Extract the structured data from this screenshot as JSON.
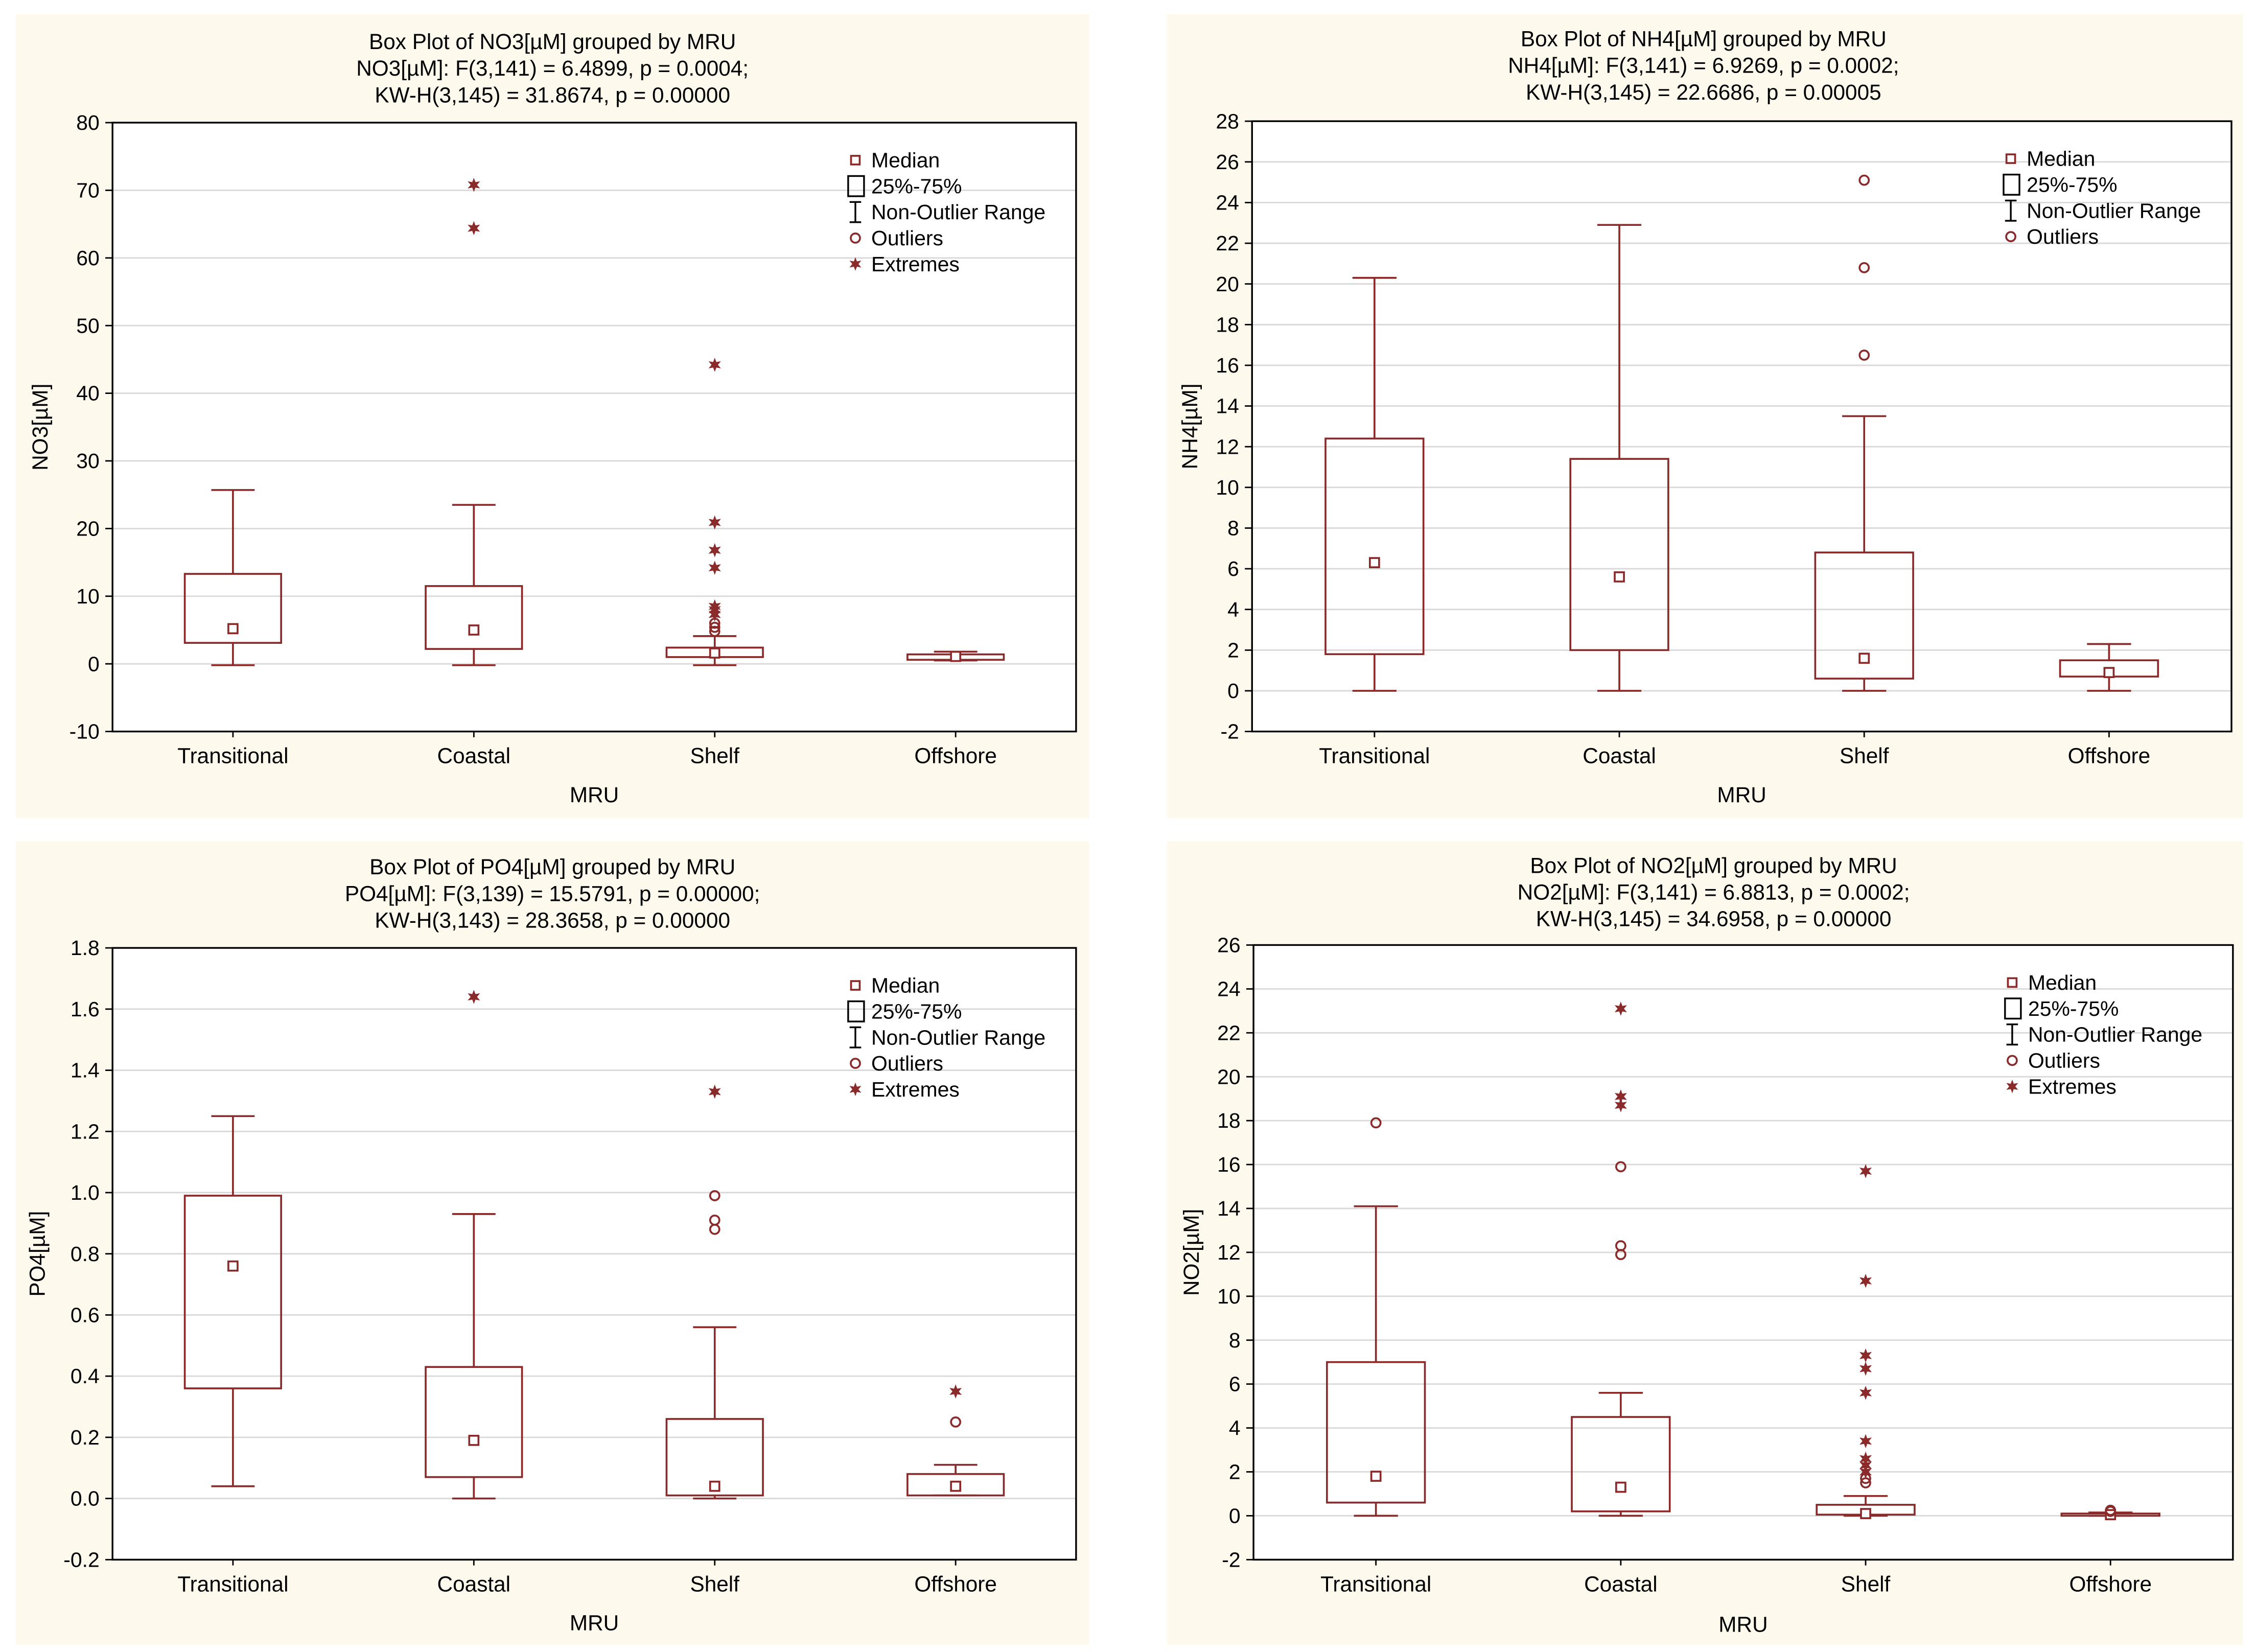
{
  "colors": {
    "panel_bg": "#fdf9ec",
    "plot_bg": "#ffffff",
    "mark": "#8b2a2a",
    "grid": "#d9d9d9",
    "axis": "#000000"
  },
  "legend_icons": [
    "median-square-icon",
    "box-25-75-icon",
    "whisker-icon",
    "outlier-circle-icon",
    "extreme-star-icon"
  ],
  "chart_data": [
    {
      "type": "box",
      "title": "Box Plot of NO3[µM] grouped by  MRU",
      "subtitle1": "NO3[µM]:   F(3,141) = 6.4899, p = 0.0004;",
      "subtitle2": "KW-H(3,145) = 31.8674, p = 0.00000",
      "xlabel": "MRU",
      "ylabel": "NO3[µM]",
      "ylim": [
        -10,
        80
      ],
      "yticks": [
        -10,
        0,
        10,
        20,
        30,
        40,
        50,
        60,
        70,
        80
      ],
      "tick_decimals": 0,
      "grid": true,
      "legend": [
        "Median",
        "25%-75%",
        "Non-Outlier Range",
        "Outliers",
        "Extremes"
      ],
      "legend_position": "top-right",
      "categories": [
        "Transitional",
        "Coastal",
        "Shelf",
        "Offshore"
      ],
      "median": [
        5.2,
        5.0,
        1.6,
        1.1
      ],
      "q1": [
        3.1,
        2.2,
        1.0,
        0.6
      ],
      "q3": [
        13.3,
        11.5,
        2.4,
        1.4
      ],
      "whisker_low": [
        -0.2,
        -0.2,
        -0.2,
        0.5
      ],
      "whisker_high": [
        25.7,
        23.5,
        4.1,
        1.8
      ],
      "outliers": [
        [],
        [],
        [
          4.8,
          5.4,
          6.0
        ],
        []
      ],
      "extremes": [
        [],
        [
          64.4,
          70.8
        ],
        [
          7.3,
          8.0,
          8.5,
          14.2,
          16.8,
          20.9,
          44.2
        ],
        []
      ]
    },
    {
      "type": "box",
      "title": "Box Plot of NH4[µM] grouped by  MRU",
      "subtitle1": "NH4[µM]:   F(3,141) = 6.9269, p = 0.0002;",
      "subtitle2": "KW-H(3,145) = 22.6686, p = 0.00005",
      "xlabel": "MRU",
      "ylabel": "NH4[µM]",
      "ylim": [
        -2,
        28
      ],
      "yticks": [
        -2,
        0,
        2,
        4,
        6,
        8,
        10,
        12,
        14,
        16,
        18,
        20,
        22,
        24,
        26,
        28
      ],
      "tick_decimals": 0,
      "grid": true,
      "legend": [
        "Median",
        "25%-75%",
        "Non-Outlier Range",
        "Outliers"
      ],
      "legend_position": "top-right",
      "categories": [
        "Transitional",
        "Coastal",
        "Shelf",
        "Offshore"
      ],
      "median": [
        6.3,
        5.6,
        1.6,
        0.9
      ],
      "q1": [
        1.8,
        2.0,
        0.6,
        0.7
      ],
      "q3": [
        12.4,
        11.4,
        6.8,
        1.5
      ],
      "whisker_low": [
        0.0,
        0.0,
        0.0,
        0.0
      ],
      "whisker_high": [
        20.3,
        22.9,
        13.5,
        2.3
      ],
      "outliers": [
        [],
        [],
        [
          16.5,
          20.8,
          25.1
        ],
        []
      ],
      "extremes": [
        [],
        [],
        [],
        []
      ]
    },
    {
      "type": "box",
      "title": "Box Plot of PO4[µM] grouped by  MRU",
      "subtitle1": "PO4[µM]:   F(3,139) = 15.5791, p = 0.00000;",
      "subtitle2": "KW-H(3,143) = 28.3658, p = 0.00000",
      "xlabel": "MRU",
      "ylabel": "PO4[µM]",
      "ylim": [
        -0.2,
        1.8
      ],
      "yticks": [
        -0.2,
        0.0,
        0.2,
        0.4,
        0.6,
        0.8,
        1.0,
        1.2,
        1.4,
        1.6,
        1.8
      ],
      "tick_decimals": 1,
      "grid": true,
      "legend": [
        "Median",
        "25%-75%",
        "Non-Outlier Range",
        "Outliers",
        "Extremes"
      ],
      "legend_position": "top-right",
      "categories": [
        "Transitional",
        "Coastal",
        "Shelf",
        "Offshore"
      ],
      "median": [
        0.76,
        0.19,
        0.04,
        0.04
      ],
      "q1": [
        0.36,
        0.07,
        0.01,
        0.01
      ],
      "q3": [
        0.99,
        0.43,
        0.26,
        0.08
      ],
      "whisker_low": [
        0.04,
        0.0,
        0.0,
        0.01
      ],
      "whisker_high": [
        1.25,
        0.93,
        0.56,
        0.11
      ],
      "outliers": [
        [],
        [],
        [
          0.88,
          0.91,
          0.99
        ],
        [
          0.25
        ]
      ],
      "extremes": [
        [],
        [
          1.64
        ],
        [
          1.33
        ],
        [
          0.35
        ]
      ]
    },
    {
      "type": "box",
      "title": "Box Plot of NO2[µM] grouped by  MRU",
      "subtitle1": "NO2[µM]:   F(3,141) = 6.8813, p = 0.0002;",
      "subtitle2": "KW-H(3,145) = 34.6958, p = 0.00000",
      "xlabel": "MRU",
      "ylabel": "NO2[µM]",
      "ylim": [
        -2,
        26
      ],
      "yticks": [
        -2,
        0,
        2,
        4,
        6,
        8,
        10,
        12,
        14,
        16,
        18,
        20,
        22,
        24,
        26
      ],
      "tick_decimals": 0,
      "grid": true,
      "legend": [
        "Median",
        "25%-75%",
        "Non-Outlier Range",
        "Outliers",
        "Extremes"
      ],
      "legend_position": "top-right",
      "categories": [
        "Transitional",
        "Coastal",
        "Shelf",
        "Offshore"
      ],
      "median": [
        1.8,
        1.3,
        0.1,
        0.05
      ],
      "q1": [
        0.6,
        0.2,
        0.05,
        0.0
      ],
      "q3": [
        7.0,
        4.5,
        0.5,
        0.1
      ],
      "whisker_low": [
        0.0,
        0.0,
        0.0,
        0.0
      ],
      "whisker_high": [
        14.1,
        5.6,
        0.9,
        0.15
      ],
      "outliers": [
        [
          17.9
        ],
        [
          11.9,
          12.3,
          15.9
        ],
        [
          1.5,
          1.7
        ],
        [
          0.2,
          0.25
        ]
      ],
      "extremes": [
        [],
        [
          18.7,
          19.1,
          23.1
        ],
        [
          2.0,
          2.3,
          2.6,
          3.4,
          5.6,
          6.7,
          7.3,
          10.7,
          15.7
        ],
        []
      ]
    }
  ]
}
